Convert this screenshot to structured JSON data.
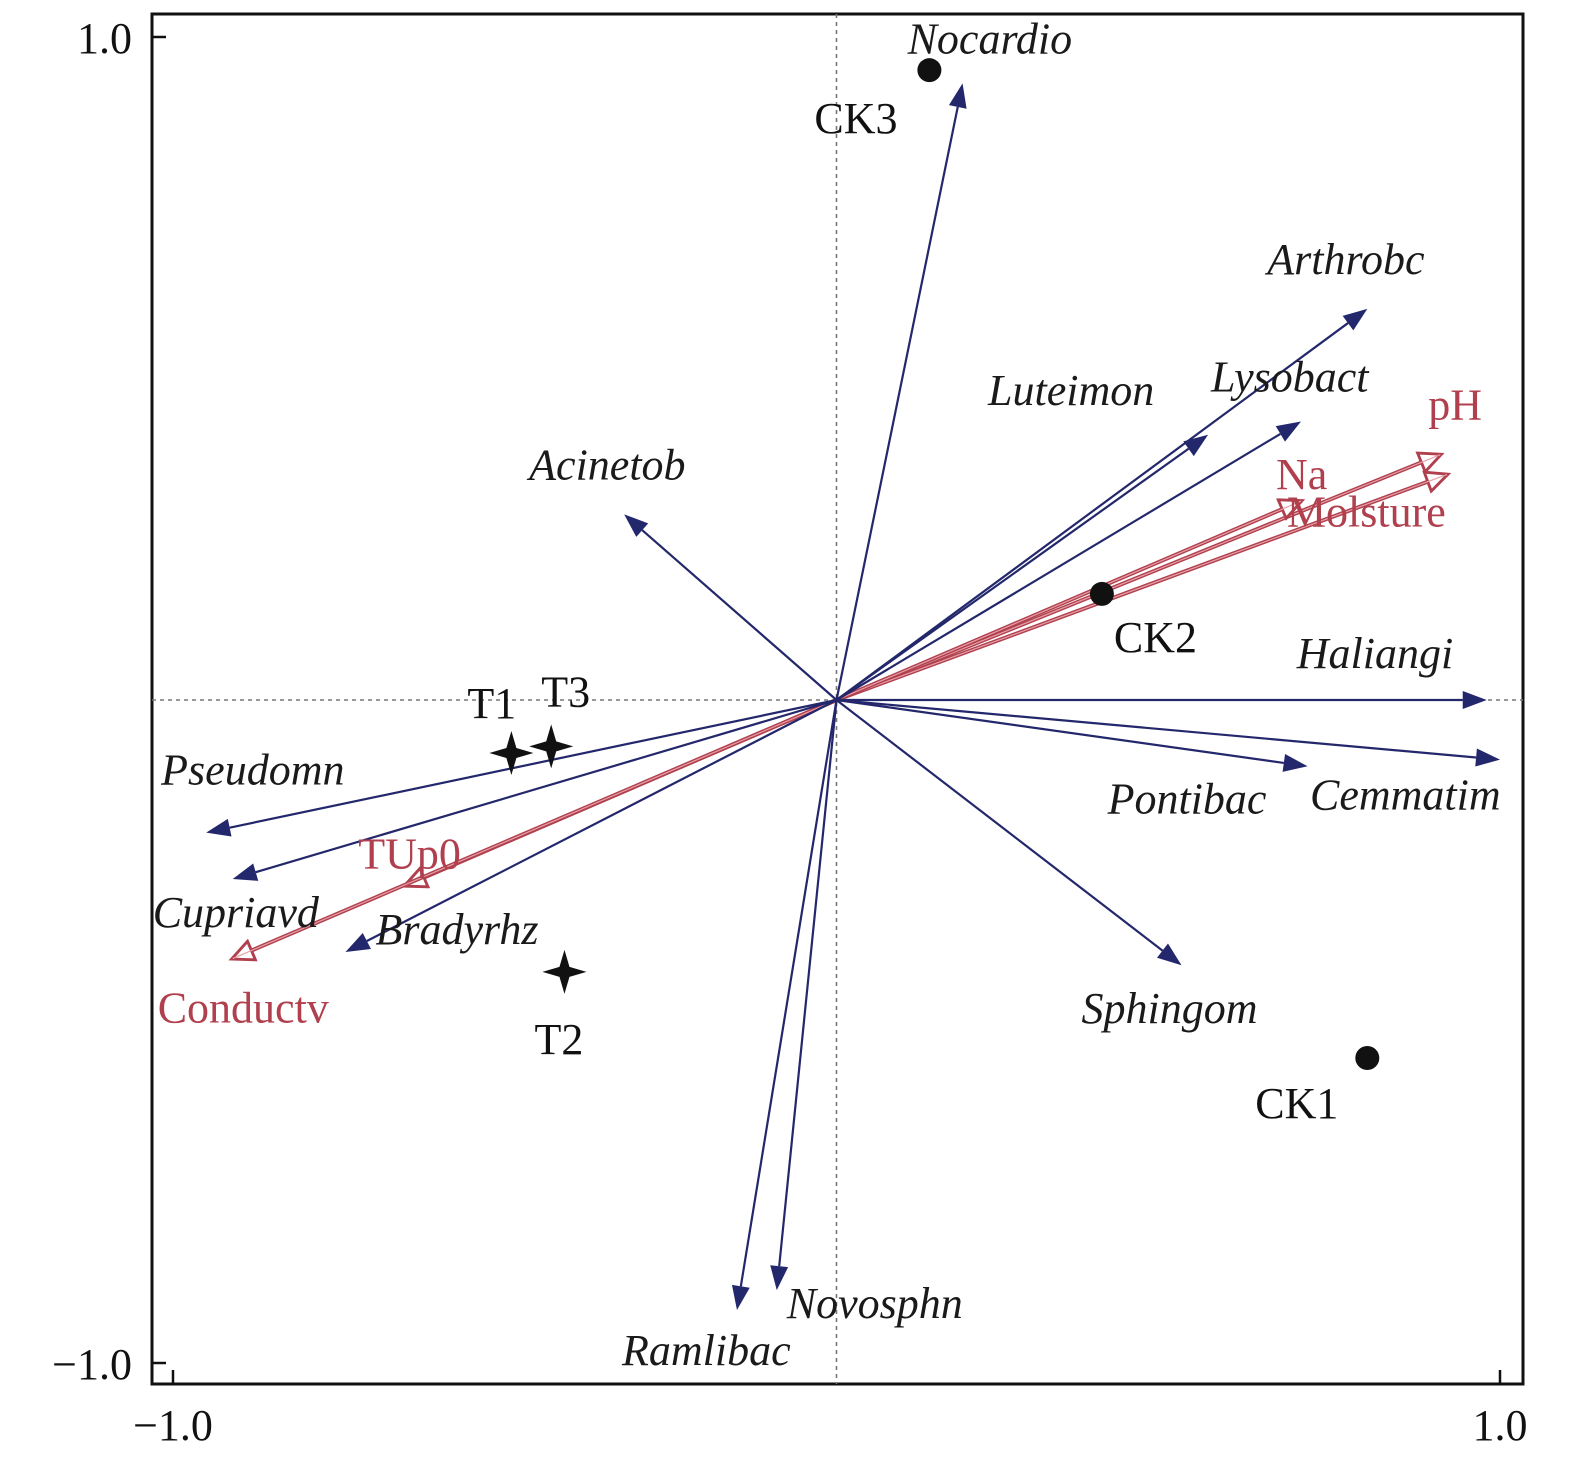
{
  "chart_data": {
    "type": "scatter",
    "title": "",
    "xlabel": "",
    "ylabel": "",
    "xlim": [
      -1.0,
      1.0
    ],
    "ylim": [
      -1.0,
      1.0
    ],
    "x_ticks": [
      {
        "value": -1.0,
        "label": "−1.0"
      },
      {
        "value": 1.0,
        "label": "1.0"
      }
    ],
    "y_ticks": [
      {
        "value": 1.0,
        "label": "1.0"
      },
      {
        "value": -1.0,
        "label": "−1.0"
      }
    ],
    "reference_lines": "dashed lines at x=0 and y=0",
    "species_arrows": [
      {
        "label": "Nocardio",
        "x": 0.19,
        "y": 0.93
      },
      {
        "label": "Arthrobc",
        "x": 0.8,
        "y": 0.59
      },
      {
        "label": "Luteimon",
        "x": 0.56,
        "y": 0.4
      },
      {
        "label": "Lysobact",
        "x": 0.7,
        "y": 0.42
      },
      {
        "label": "Acinetob",
        "x": -0.32,
        "y": 0.28
      },
      {
        "label": "Haliangi",
        "x": 0.98,
        "y": 0.0
      },
      {
        "label": "Pontibac",
        "x": 0.71,
        "y": -0.1
      },
      {
        "label": "Cemmatim",
        "x": 1.0,
        "y": -0.09
      },
      {
        "label": "Sphingom",
        "x": 0.52,
        "y": -0.4
      },
      {
        "label": "Novosphn",
        "x": -0.09,
        "y": -0.89
      },
      {
        "label": "Ramlibac",
        "x": -0.15,
        "y": -0.92
      },
      {
        "label": "Pseudomn",
        "x": -0.95,
        "y": -0.2
      },
      {
        "label": "Cupriavd",
        "x": -0.91,
        "y": -0.27
      },
      {
        "label": "Bradyrhz",
        "x": -0.74,
        "y": -0.38
      }
    ],
    "environment_arrows": [
      {
        "label": "pH",
        "x": 0.91,
        "y": 0.37
      },
      {
        "label": "Molsture",
        "x": 0.92,
        "y": 0.34
      },
      {
        "label": "Na",
        "x": 0.7,
        "y": 0.3
      },
      {
        "label": "TUp0",
        "x": -0.65,
        "y": -0.28
      },
      {
        "label": "Conductv",
        "x": -0.91,
        "y": -0.39
      }
    ],
    "samples": [
      {
        "label": "CK3",
        "group": "CK",
        "x": 0.14,
        "y": 0.95
      },
      {
        "label": "CK2",
        "group": "CK",
        "x": 0.4,
        "y": 0.16
      },
      {
        "label": "CK1",
        "group": "CK",
        "x": 0.8,
        "y": -0.54
      },
      {
        "label": "T1",
        "group": "T",
        "x": -0.49,
        "y": -0.08
      },
      {
        "label": "T3",
        "group": "T",
        "x": -0.43,
        "y": -0.07
      },
      {
        "label": "T2",
        "group": "T",
        "x": -0.41,
        "y": -0.41
      }
    ],
    "colors": {
      "species": "#23276b",
      "environment": "#b0404e",
      "sample": "#111111"
    }
  }
}
